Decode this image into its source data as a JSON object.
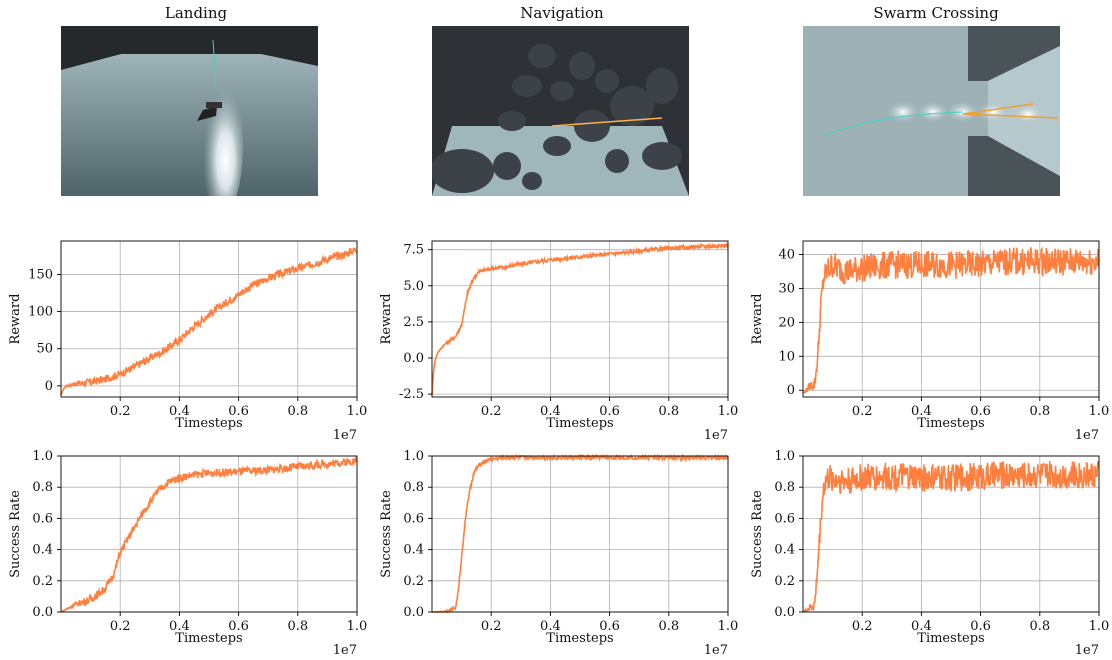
{
  "columns": [
    {
      "title": "Landing",
      "scene": "landing-scene-render"
    },
    {
      "title": "Navigation",
      "scene": "navigation-scene-render"
    },
    {
      "title": "Swarm Crossing",
      "scene": "swarm-crossing-scene-render"
    }
  ],
  "line_color": "#ff7f3f",
  "chart_data": [
    {
      "type": "line",
      "name": "landing-reward",
      "xlabel": "Timesteps",
      "ylabel": "Reward",
      "x_scale_label": "1e7",
      "xlim": [
        0,
        1.0
      ],
      "ylim": [
        -15,
        195
      ],
      "xticks": [
        0.2,
        0.4,
        0.6,
        0.8,
        1.0
      ],
      "yticks": [
        0,
        50,
        100,
        150
      ],
      "ytick_format": "int",
      "grid": true,
      "x": [
        0.0,
        0.01,
        0.02,
        0.05,
        0.1,
        0.15,
        0.2,
        0.25,
        0.3,
        0.35,
        0.4,
        0.45,
        0.5,
        0.55,
        0.6,
        0.65,
        0.7,
        0.75,
        0.8,
        0.85,
        0.9,
        0.95,
        1.0
      ],
      "values": [
        -12,
        -3,
        0,
        3,
        5,
        9,
        16,
        26,
        37,
        48,
        62,
        80,
        96,
        110,
        123,
        136,
        145,
        152,
        158,
        164,
        171,
        176,
        184
      ]
    },
    {
      "type": "line",
      "name": "navigation-reward",
      "xlabel": "Timesteps",
      "ylabel": "Reward",
      "x_scale_label": "1e7",
      "xlim": [
        0,
        1.0
      ],
      "ylim": [
        -2.7,
        8.1
      ],
      "xticks": [
        0.2,
        0.4,
        0.6,
        0.8,
        1.0
      ],
      "yticks": [
        -2.5,
        0.0,
        2.5,
        5.0,
        7.5
      ],
      "ytick_format": "1f",
      "grid": true,
      "x": [
        0.0,
        0.005,
        0.01,
        0.02,
        0.04,
        0.06,
        0.08,
        0.1,
        0.12,
        0.14,
        0.16,
        0.2,
        0.25,
        0.3,
        0.4,
        0.5,
        0.6,
        0.7,
        0.8,
        0.9,
        1.0
      ],
      "values": [
        -2.6,
        -1.0,
        -0.2,
        0.4,
        0.9,
        1.2,
        1.5,
        2.3,
        4.5,
        5.5,
        6.0,
        6.2,
        6.3,
        6.5,
        6.8,
        7.0,
        7.2,
        7.4,
        7.6,
        7.7,
        7.8
      ]
    },
    {
      "type": "line",
      "name": "swarm-reward",
      "xlabel": "Timesteps",
      "ylabel": "Reward",
      "x_scale_label": "1e7",
      "xlim": [
        0,
        1.0
      ],
      "ylim": [
        -2,
        44
      ],
      "xticks": [
        0.2,
        0.4,
        0.6,
        0.8,
        1.0
      ],
      "yticks": [
        0,
        10,
        20,
        30,
        40
      ],
      "ytick_format": "int",
      "grid": true,
      "x": [
        0.0,
        0.02,
        0.04,
        0.05,
        0.06,
        0.07,
        0.08,
        0.1,
        0.12,
        0.15,
        0.2,
        0.3,
        0.4,
        0.5,
        0.6,
        0.7,
        0.8,
        0.9,
        1.0
      ],
      "values": [
        -1,
        1,
        2,
        10,
        25,
        33,
        35,
        37,
        36,
        35,
        36,
        37,
        37,
        37,
        37,
        38,
        38,
        38,
        38
      ]
    },
    {
      "type": "line",
      "name": "landing-success",
      "xlabel": "Timesteps",
      "ylabel": "Success Rate",
      "x_scale_label": "1e7",
      "xlim": [
        0,
        1.0
      ],
      "ylim": [
        0,
        1.0
      ],
      "xticks": [
        0.2,
        0.4,
        0.6,
        0.8,
        1.0
      ],
      "yticks": [
        0.0,
        0.2,
        0.4,
        0.6,
        0.8,
        1.0
      ],
      "ytick_format": "1f",
      "grid": true,
      "x": [
        0.0,
        0.02,
        0.05,
        0.1,
        0.15,
        0.18,
        0.2,
        0.22,
        0.25,
        0.28,
        0.3,
        0.33,
        0.36,
        0.4,
        0.45,
        0.5,
        0.6,
        0.7,
        0.8,
        0.9,
        1.0
      ],
      "values": [
        0.0,
        0.02,
        0.05,
        0.08,
        0.15,
        0.25,
        0.38,
        0.45,
        0.55,
        0.65,
        0.7,
        0.78,
        0.83,
        0.86,
        0.88,
        0.89,
        0.9,
        0.91,
        0.93,
        0.95,
        0.97
      ]
    },
    {
      "type": "line",
      "name": "navigation-success",
      "xlabel": "Timesteps",
      "ylabel": "Success Rate",
      "x_scale_label": "1e7",
      "xlim": [
        0,
        1.0
      ],
      "ylim": [
        0,
        1.0
      ],
      "xticks": [
        0.2,
        0.4,
        0.6,
        0.8,
        1.0
      ],
      "yticks": [
        0.0,
        0.2,
        0.4,
        0.6,
        0.8,
        1.0
      ],
      "ytick_format": "1f",
      "grid": true,
      "x": [
        0.0,
        0.03,
        0.06,
        0.08,
        0.09,
        0.1,
        0.11,
        0.12,
        0.13,
        0.14,
        0.15,
        0.17,
        0.2,
        0.25,
        0.3,
        0.4,
        0.5,
        0.6,
        0.8,
        1.0
      ],
      "values": [
        0.0,
        0.0,
        0.01,
        0.03,
        0.15,
        0.35,
        0.55,
        0.7,
        0.8,
        0.88,
        0.92,
        0.96,
        0.98,
        0.99,
        0.99,
        0.99,
        0.99,
        0.99,
        0.99,
        0.99
      ]
    },
    {
      "type": "line",
      "name": "swarm-success",
      "xlabel": "Timesteps",
      "ylabel": "Success Rate",
      "x_scale_label": "1e7",
      "xlim": [
        0,
        1.0
      ],
      "ylim": [
        0,
        1.0
      ],
      "xticks": [
        0.2,
        0.4,
        0.6,
        0.8,
        1.0
      ],
      "yticks": [
        0.0,
        0.2,
        0.4,
        0.6,
        0.8,
        1.0
      ],
      "ytick_format": "1f",
      "grid": true,
      "x": [
        0.0,
        0.02,
        0.04,
        0.05,
        0.06,
        0.07,
        0.08,
        0.1,
        0.12,
        0.15,
        0.2,
        0.3,
        0.4,
        0.5,
        0.6,
        0.7,
        0.8,
        0.9,
        1.0
      ],
      "values": [
        0.0,
        0.02,
        0.05,
        0.3,
        0.6,
        0.8,
        0.85,
        0.86,
        0.85,
        0.84,
        0.86,
        0.87,
        0.86,
        0.86,
        0.87,
        0.88,
        0.88,
        0.88,
        0.88
      ]
    }
  ]
}
